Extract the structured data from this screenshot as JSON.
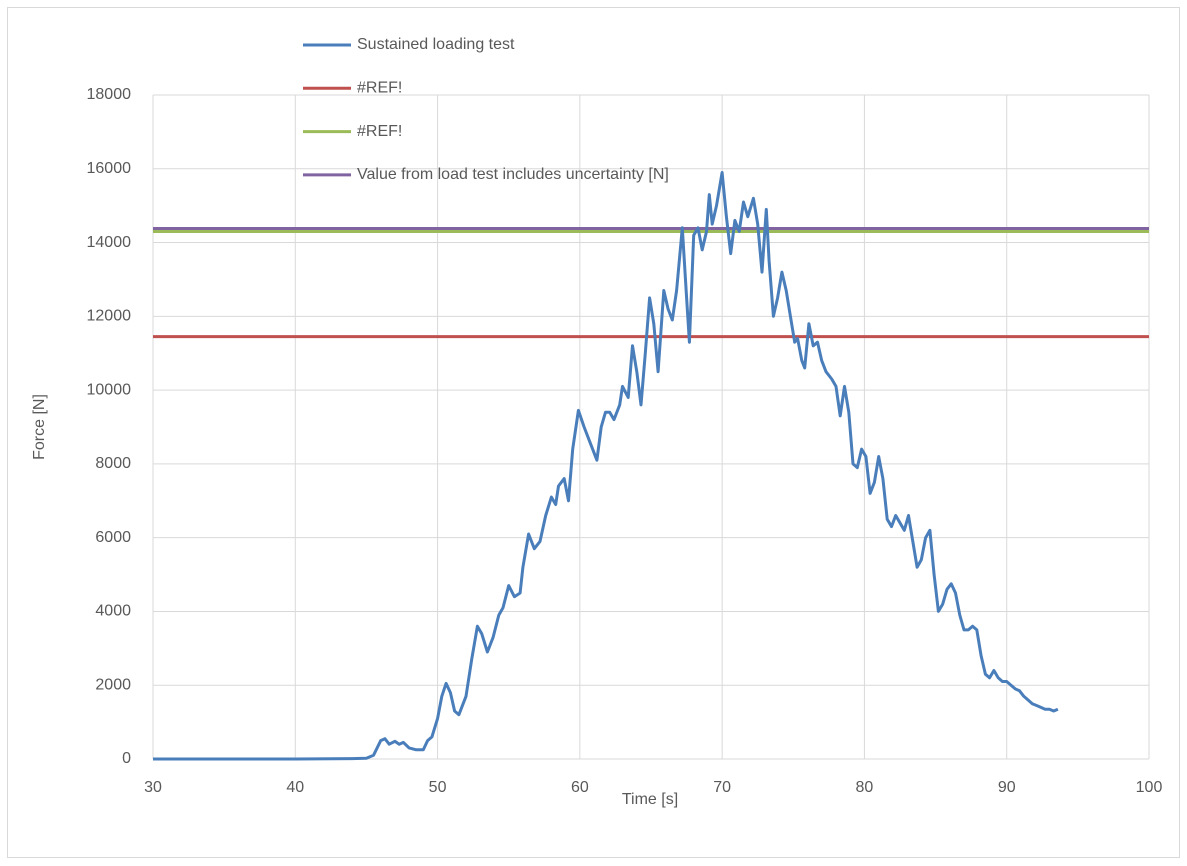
{
  "chart_data": {
    "type": "line",
    "xlabel": "Time [s]",
    "ylabel": "Force [N]",
    "xlim": [
      30,
      100
    ],
    "xticks": [
      30,
      40,
      50,
      60,
      70,
      80,
      90,
      100
    ],
    "ylim": [
      0,
      18000
    ],
    "yticks": [
      0,
      2000,
      4000,
      6000,
      8000,
      10000,
      12000,
      14000,
      16000,
      18000
    ],
    "grid": true,
    "legend": "top",
    "series": [
      {
        "name": "Sustained loading test",
        "color": "#4a7ebb",
        "x": [
          30,
          35,
          40,
          44,
          45,
          45.5,
          46,
          46.3,
          46.6,
          47,
          47.3,
          47.6,
          48,
          48.5,
          49,
          49.3,
          49.6,
          50,
          50.3,
          50.6,
          50.9,
          51.2,
          51.5,
          52,
          52.4,
          52.8,
          53.1,
          53.5,
          53.9,
          54.3,
          54.6,
          55,
          55.4,
          55.8,
          56,
          56.4,
          56.8,
          57.2,
          57.6,
          58,
          58.3,
          58.5,
          58.9,
          59.2,
          59.5,
          59.9,
          60.3,
          60.7,
          61.2,
          61.5,
          61.8,
          62.1,
          62.4,
          62.8,
          63,
          63.4,
          63.7,
          64,
          64.3,
          64.6,
          64.9,
          65.2,
          65.5,
          65.9,
          66.2,
          66.5,
          66.8,
          67.2,
          67.5,
          67.7,
          68,
          68.3,
          68.6,
          68.9,
          69.1,
          69.3,
          69.6,
          70,
          70.3,
          70.6,
          70.9,
          71.2,
          71.5,
          71.8,
          72.2,
          72.5,
          72.8,
          73.1,
          73.3,
          73.6,
          73.9,
          74.2,
          74.5,
          74.8,
          75.1,
          75.3,
          75.6,
          75.8,
          76.1,
          76.4,
          76.7,
          77,
          77.3,
          77.7,
          78,
          78.3,
          78.6,
          78.9,
          79.2,
          79.5,
          79.8,
          80.1,
          80.4,
          80.7,
          81,
          81.3,
          81.6,
          81.9,
          82.2,
          82.5,
          82.8,
          83.1,
          83.4,
          83.7,
          84,
          84.3,
          84.6,
          84.9,
          85.2,
          85.5,
          85.8,
          86.1,
          86.4,
          86.7,
          87,
          87.3,
          87.6,
          87.9,
          88.2,
          88.5,
          88.8,
          89.1,
          89.4,
          89.7,
          90,
          90.3,
          90.6,
          90.9,
          91.2,
          91.5,
          91.8,
          92.1,
          92.4,
          92.7,
          93,
          93.3,
          93.6
        ],
        "values": [
          0,
          0,
          0,
          10,
          20,
          100,
          500,
          550,
          400,
          480,
          400,
          450,
          300,
          250,
          250,
          500,
          600,
          1100,
          1700,
          2050,
          1800,
          1300,
          1200,
          1700,
          2700,
          3600,
          3400,
          2900,
          3300,
          3900,
          4100,
          4700,
          4400,
          4500,
          5200,
          6100,
          5700,
          5900,
          6600,
          7100,
          6900,
          7400,
          7600,
          7000,
          8400,
          9450,
          9000,
          8600,
          8100,
          9000,
          9400,
          9400,
          9200,
          9600,
          10100,
          9800,
          11200,
          10500,
          9600,
          11000,
          12500,
          11800,
          10500,
          12700,
          12200,
          11900,
          12700,
          14400,
          12500,
          11300,
          14200,
          14400,
          13800,
          14300,
          15300,
          14500,
          15000,
          15900,
          14700,
          13700,
          14600,
          14300,
          15100,
          14700,
          15200,
          14500,
          13200,
          14900,
          13500,
          12000,
          12500,
          13200,
          12700,
          12000,
          11300,
          11400,
          10800,
          10600,
          11800,
          11200,
          11300,
          10800,
          10500,
          10300,
          10100,
          9300,
          10100,
          9400,
          8000,
          7900,
          8400,
          8200,
          7200,
          7500,
          8200,
          7600,
          6500,
          6300,
          6600,
          6400,
          6200,
          6600,
          5900,
          5200,
          5400,
          6000,
          6200,
          5000,
          4000,
          4200,
          4600,
          4750,
          4500,
          3900,
          3500,
          3500,
          3600,
          3500,
          2800,
          2300,
          2200,
          2400,
          2200,
          2100,
          2100,
          2000,
          1900,
          1850,
          1700,
          1600,
          1500,
          1450,
          1400,
          1350,
          1350,
          1300,
          1350
        ]
      },
      {
        "name": "#REF!",
        "color": "#c0504d",
        "x": [
          30,
          100
        ],
        "values": [
          11450,
          11450
        ]
      },
      {
        "name": "#REF!",
        "color": "#9bbb59",
        "x": [
          30,
          100
        ],
        "values": [
          14300,
          14300
        ]
      },
      {
        "name": "Value from load test includes uncertainty [N]",
        "color": "#8064a2",
        "x": [
          30,
          100
        ],
        "values": [
          14380,
          14380
        ]
      }
    ]
  }
}
